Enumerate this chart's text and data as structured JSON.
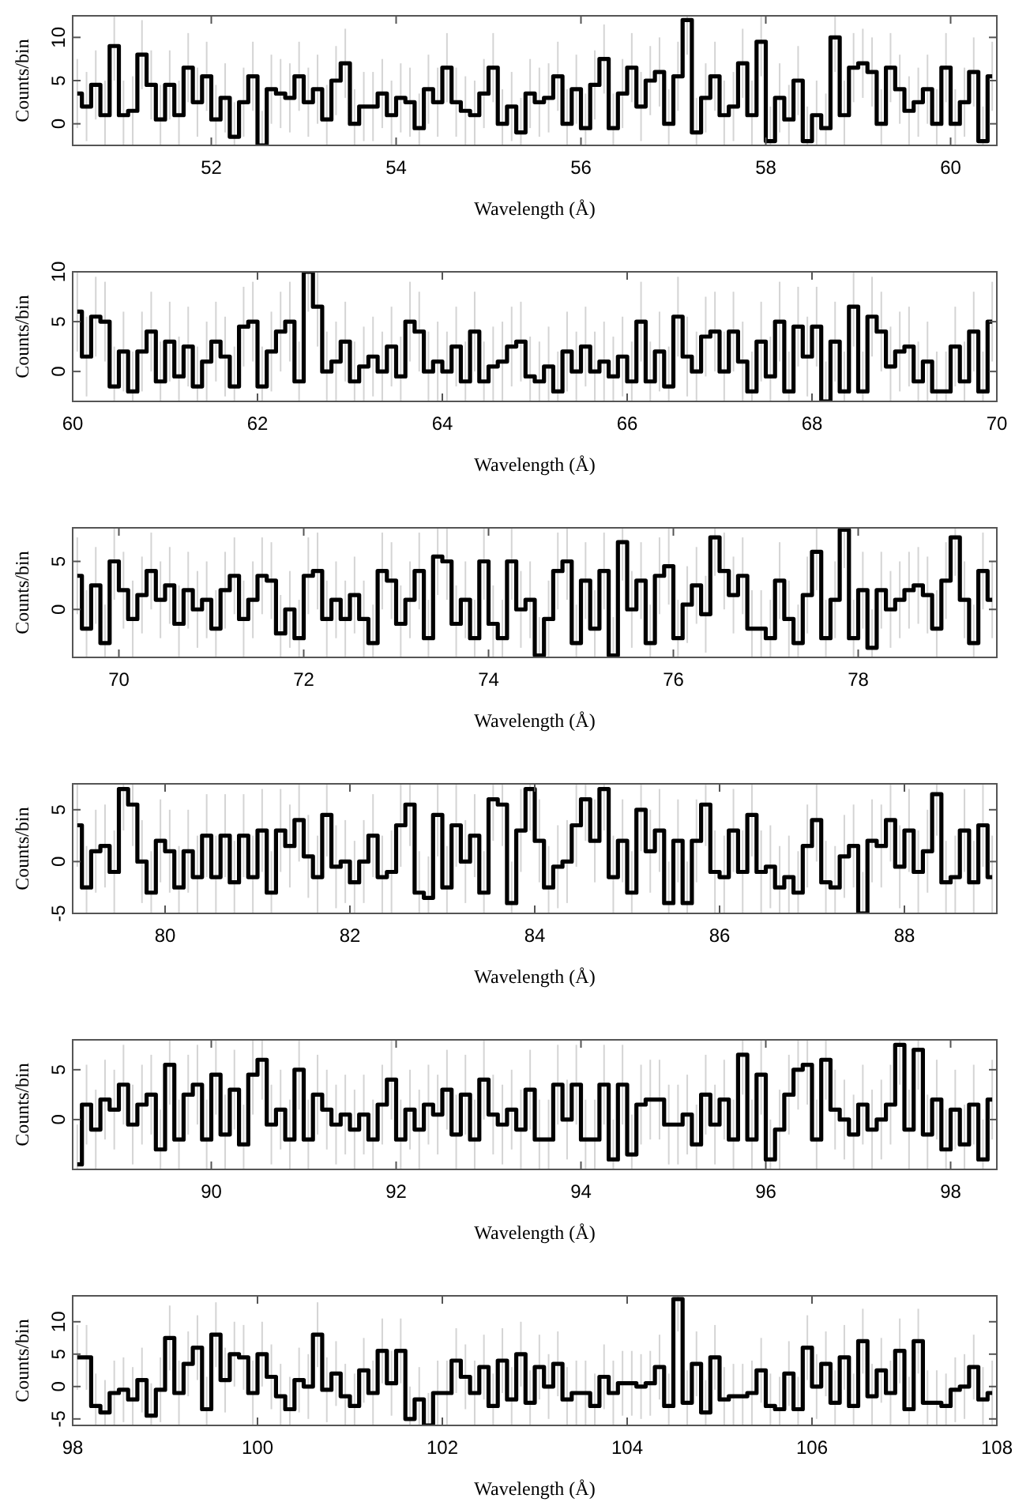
{
  "chart_data": [
    {
      "type": "step",
      "xlabel": "Wavelength (Å)",
      "ylabel": "Counts/bin",
      "xlim": [
        50.5,
        60.5
      ],
      "ylim": [
        -2.5,
        12.5
      ],
      "xticks": [
        52,
        54,
        56,
        58,
        60
      ],
      "yticks": [
        0,
        5,
        10
      ],
      "grid": false,
      "line_style": "solid",
      "marker": "none",
      "x": [
        50.55,
        50.65,
        50.75,
        50.85,
        50.95,
        51.05,
        51.15,
        51.25,
        51.35,
        51.45,
        51.55,
        51.65,
        51.75,
        51.85,
        51.95,
        52.05,
        52.15,
        52.25,
        52.35,
        52.45,
        52.55,
        52.65,
        52.75,
        52.85,
        52.95,
        53.05,
        53.15,
        53.25,
        53.35,
        53.45,
        53.55,
        53.65,
        53.75,
        53.85,
        53.95,
        54.05,
        54.15,
        54.25,
        54.35,
        54.45,
        54.55,
        54.65,
        54.75,
        54.85,
        54.95,
        55.05,
        55.15,
        55.25,
        55.35,
        55.45,
        55.55,
        55.65,
        55.75,
        55.85,
        55.95,
        56.05,
        56.15,
        56.25,
        56.35,
        56.45,
        56.55,
        56.65,
        56.75,
        56.85,
        56.95,
        57.05,
        57.15,
        57.25,
        57.35,
        57.45,
        57.55,
        57.65,
        57.75,
        57.85,
        57.95,
        58.05,
        58.15,
        58.25,
        58.35,
        58.45,
        58.55,
        58.65,
        58.75,
        58.85,
        58.95,
        59.05,
        59.15,
        59.25,
        59.35,
        59.45,
        59.55,
        59.65,
        59.75,
        59.85,
        59.95,
        60.05,
        60.15,
        60.25,
        60.35,
        60.45
      ],
      "values": [
        3.5,
        2,
        4.5,
        1,
        9,
        1,
        1.5,
        8,
        4.5,
        0.5,
        4.5,
        1,
        6.5,
        2.5,
        5.5,
        0.5,
        3,
        -1.5,
        2.5,
        5.5,
        -2.5,
        4,
        3.5,
        3,
        5.5,
        2.5,
        4,
        0.5,
        5,
        7,
        0,
        2,
        2,
        3.5,
        1,
        3,
        2.5,
        -0.5,
        4,
        2.5,
        6.5,
        2.5,
        1.5,
        1,
        3.5,
        6.5,
        0,
        2,
        -1,
        3.5,
        2.5,
        3,
        5.5,
        0,
        4,
        -0.5,
        4.5,
        7.5,
        -0.5,
        3.5,
        6.5,
        2,
        5,
        6,
        0,
        5.5,
        12,
        -1,
        3,
        5.5,
        1,
        2,
        7,
        1,
        9.5,
        -2,
        3,
        0.5,
        5,
        -2,
        1,
        -0.5,
        10,
        1,
        6.5,
        7,
        6,
        0,
        6.5,
        4,
        1.5,
        2.5,
        4,
        0,
        6.5,
        0,
        2.5,
        6,
        -2,
        5.5
      ],
      "errors": [
        4,
        4,
        4,
        4,
        4,
        4,
        4,
        4,
        4,
        4,
        4,
        4,
        4,
        4,
        4,
        4,
        4,
        4,
        4,
        4,
        4,
        4,
        4,
        4,
        4,
        4,
        4,
        4,
        4,
        4,
        4,
        4,
        4,
        4,
        4,
        4,
        4,
        4,
        4,
        4,
        4,
        4,
        4,
        4,
        4,
        4,
        4,
        4,
        4,
        4,
        4,
        4,
        4,
        4,
        4,
        4,
        4,
        4,
        4,
        4,
        4,
        4,
        4,
        4,
        4,
        4,
        4,
        4,
        4,
        4,
        4,
        4,
        4,
        4,
        4,
        4,
        4,
        4,
        4,
        4,
        4,
        4,
        4,
        4,
        4,
        4,
        4,
        4,
        4,
        4,
        4,
        4,
        4,
        4,
        4,
        4,
        4,
        4,
        4,
        4
      ]
    },
    {
      "type": "step",
      "xlabel": "Wavelength (Å)",
      "ylabel": "Counts/bin",
      "xlim": [
        60,
        70
      ],
      "ylim": [
        -3,
        10
      ],
      "xticks": [
        60,
        62,
        64,
        66,
        68,
        70
      ],
      "yticks": [
        0,
        5,
        10
      ],
      "grid": false,
      "line_style": "solid",
      "marker": "none",
      "x": [
        60.05,
        60.15,
        60.25,
        60.35,
        60.45,
        60.55,
        60.65,
        60.75,
        60.85,
        60.95,
        61.05,
        61.15,
        61.25,
        61.35,
        61.45,
        61.55,
        61.65,
        61.75,
        61.85,
        61.95,
        62.05,
        62.15,
        62.25,
        62.35,
        62.45,
        62.55,
        62.65,
        62.75,
        62.85,
        62.95,
        63.05,
        63.15,
        63.25,
        63.35,
        63.45,
        63.55,
        63.65,
        63.75,
        63.85,
        63.95,
        64.05,
        64.15,
        64.25,
        64.35,
        64.45,
        64.55,
        64.65,
        64.75,
        64.85,
        64.95,
        65.05,
        65.15,
        65.25,
        65.35,
        65.45,
        65.55,
        65.65,
        65.75,
        65.85,
        65.95,
        66.05,
        66.15,
        66.25,
        66.35,
        66.45,
        66.55,
        66.65,
        66.75,
        66.85,
        66.95,
        67.05,
        67.15,
        67.25,
        67.35,
        67.45,
        67.55,
        67.65,
        67.75,
        67.85,
        67.95,
        68.05,
        68.15,
        68.25,
        68.35,
        68.45,
        68.55,
        68.65,
        68.75,
        68.85,
        68.95,
        69.05,
        69.15,
        69.25,
        69.35,
        69.45,
        69.55,
        69.65,
        69.75,
        69.85,
        69.95
      ],
      "values": [
        6,
        1.5,
        5.5,
        5,
        -1.5,
        2,
        -2,
        2,
        4,
        -1,
        3,
        -0.5,
        2.5,
        -1.5,
        1,
        3,
        1.5,
        -1.5,
        4.5,
        5,
        -1.5,
        2,
        4,
        5,
        -1,
        10,
        6.5,
        0,
        1,
        3,
        -1,
        0.5,
        1.5,
        0,
        2.5,
        -0.5,
        5,
        4,
        0,
        1,
        0,
        2.5,
        -1,
        4,
        -1,
        0.5,
        1,
        2.5,
        3,
        -0.5,
        -1,
        0.5,
        -2,
        2,
        0,
        2.5,
        0,
        1,
        -0.5,
        1.5,
        -1,
        5,
        -1,
        2,
        -1.5,
        5.5,
        1.5,
        0,
        3.5,
        4,
        0,
        4,
        1,
        -2,
        3,
        -0.5,
        5,
        -2,
        4.5,
        1.5,
        4.5,
        -3,
        3,
        -2,
        6.5,
        -2,
        5.5,
        4,
        0.5,
        2,
        2.5,
        -1,
        1,
        -2,
        -2,
        2.5,
        -1,
        4,
        -2,
        5
      ],
      "errors": [
        4,
        4,
        4,
        4,
        4,
        4,
        4,
        4,
        4,
        4,
        4,
        4,
        4,
        4,
        4,
        4,
        4,
        4,
        4,
        4,
        4,
        4,
        4,
        4,
        4,
        4,
        4,
        4,
        4,
        4,
        4,
        4,
        4,
        4,
        4,
        4,
        4,
        4,
        4,
        4,
        4,
        4,
        4,
        4,
        4,
        4,
        4,
        4,
        4,
        4,
        4,
        4,
        4,
        4,
        4,
        4,
        4,
        4,
        4,
        4,
        4,
        4,
        4,
        4,
        4,
        4,
        4,
        4,
        4,
        4,
        4,
        4,
        4,
        4,
        4,
        4,
        4,
        4,
        4,
        4,
        4,
        4,
        4,
        4,
        4,
        4,
        4,
        4,
        4,
        4,
        4,
        4,
        4,
        4,
        4,
        4,
        4,
        4,
        4,
        4
      ]
    },
    {
      "type": "step",
      "xlabel": "Wavelength (Å)",
      "ylabel": "Counts/bin",
      "xlim": [
        69.5,
        79.5
      ],
      "ylim": [
        -5,
        8.5
      ],
      "xticks": [
        70,
        72,
        74,
        76,
        78
      ],
      "yticks": [
        0,
        5
      ],
      "grid": false,
      "line_style": "solid",
      "marker": "none",
      "x": [
        69.55,
        69.65,
        69.75,
        69.85,
        69.95,
        70.05,
        70.15,
        70.25,
        70.35,
        70.45,
        70.55,
        70.65,
        70.75,
        70.85,
        70.95,
        71.05,
        71.15,
        71.25,
        71.35,
        71.45,
        71.55,
        71.65,
        71.75,
        71.85,
        71.95,
        72.05,
        72.15,
        72.25,
        72.35,
        72.45,
        72.55,
        72.65,
        72.75,
        72.85,
        72.95,
        73.05,
        73.15,
        73.25,
        73.35,
        73.45,
        73.55,
        73.65,
        73.75,
        73.85,
        73.95,
        74.05,
        74.15,
        74.25,
        74.35,
        74.45,
        74.55,
        74.65,
        74.75,
        74.85,
        74.95,
        75.05,
        75.15,
        75.25,
        75.35,
        75.45,
        75.55,
        75.65,
        75.75,
        75.85,
        75.95,
        76.05,
        76.15,
        76.25,
        76.35,
        76.45,
        76.55,
        76.65,
        76.75,
        76.85,
        76.95,
        77.05,
        77.15,
        77.25,
        77.35,
        77.45,
        77.55,
        77.65,
        77.75,
        77.85,
        77.95,
        78.05,
        78.15,
        78.25,
        78.35,
        78.45,
        78.55,
        78.65,
        78.75,
        78.85,
        78.95,
        79.05,
        79.15,
        79.25,
        79.35,
        79.45
      ],
      "values": [
        3.5,
        -2,
        2.5,
        -3.5,
        5,
        2,
        -1,
        1.5,
        4,
        1,
        2.5,
        -1.5,
        2,
        0,
        1,
        -2,
        2,
        3.5,
        -1,
        1,
        3.5,
        3,
        -2.5,
        0,
        -3,
        3.5,
        4,
        -1,
        1,
        -1,
        1.5,
        -1,
        -3.5,
        4,
        3,
        -1.5,
        1,
        4,
        -3,
        5.5,
        5,
        -1.5,
        1,
        -3,
        5,
        -1.5,
        -3,
        5,
        0,
        1,
        -4.8,
        -1,
        4,
        5,
        -3.5,
        3,
        -2,
        4,
        -4.8,
        7,
        0,
        3,
        -3.5,
        3.5,
        4.5,
        -3,
        0.5,
        2.5,
        -0.5,
        7.5,
        4,
        1.5,
        3.5,
        -2,
        -2,
        -3,
        3,
        -1,
        -3.5,
        1.5,
        6,
        -3,
        1,
        8.3,
        -3,
        2,
        -4,
        2,
        0,
        1,
        2,
        2.5,
        1.5,
        -2,
        3,
        7.5,
        1,
        -3.5,
        4,
        1
      ],
      "errors": [
        4,
        4,
        4,
        4,
        4,
        4,
        4,
        4,
        4,
        4,
        4,
        4,
        4,
        4,
        4,
        4,
        4,
        4,
        4,
        4,
        4,
        4,
        4,
        4,
        4,
        4,
        4,
        4,
        4,
        4,
        4,
        4,
        4,
        4,
        4,
        4,
        4,
        4,
        4,
        4,
        4,
        4,
        4,
        4,
        4,
        4,
        4,
        4,
        4,
        4,
        4,
        4,
        4,
        4,
        4,
        4,
        4,
        4,
        4,
        4,
        4,
        4,
        4,
        4,
        4,
        4,
        4,
        4,
        4,
        4,
        4,
        4,
        4,
        4,
        4,
        4,
        4,
        4,
        4,
        4,
        4,
        4,
        4,
        4,
        4,
        4,
        4,
        4,
        4,
        4,
        4,
        4,
        4,
        4,
        4,
        4,
        4,
        4,
        4,
        4
      ]
    },
    {
      "type": "step",
      "xlabel": "Wavelength (Å)",
      "ylabel": "Counts/bin",
      "xlim": [
        79,
        89
      ],
      "ylim": [
        -5,
        7.5
      ],
      "xticks": [
        80,
        82,
        84,
        86,
        88
      ],
      "yticks": [
        -5,
        0,
        5
      ],
      "grid": false,
      "line_style": "solid",
      "marker": "none",
      "x": [
        79.05,
        79.15,
        79.25,
        79.35,
        79.45,
        79.55,
        79.65,
        79.75,
        79.85,
        79.95,
        80.05,
        80.15,
        80.25,
        80.35,
        80.45,
        80.55,
        80.65,
        80.75,
        80.85,
        80.95,
        81.05,
        81.15,
        81.25,
        81.35,
        81.45,
        81.55,
        81.65,
        81.75,
        81.85,
        81.95,
        82.05,
        82.15,
        82.25,
        82.35,
        82.45,
        82.55,
        82.65,
        82.75,
        82.85,
        82.95,
        83.05,
        83.15,
        83.25,
        83.35,
        83.45,
        83.55,
        83.65,
        83.75,
        83.85,
        83.95,
        84.05,
        84.15,
        84.25,
        84.35,
        84.45,
        84.55,
        84.65,
        84.75,
        84.85,
        84.95,
        85.05,
        85.15,
        85.25,
        85.35,
        85.45,
        85.55,
        85.65,
        85.75,
        85.85,
        85.95,
        86.05,
        86.15,
        86.25,
        86.35,
        86.45,
        86.55,
        86.65,
        86.75,
        86.85,
        86.95,
        87.05,
        87.15,
        87.25,
        87.35,
        87.45,
        87.55,
        87.65,
        87.75,
        87.85,
        87.95,
        88.05,
        88.15,
        88.25,
        88.35,
        88.45,
        88.55,
        88.65,
        88.75,
        88.85,
        88.95
      ],
      "values": [
        3.5,
        -2.5,
        1,
        1.5,
        -1,
        7,
        5.5,
        0,
        -3,
        2,
        1,
        -2.5,
        1,
        -1.5,
        2.5,
        -1.5,
        2.5,
        -2,
        2.5,
        -1.5,
        3,
        -3,
        3,
        1.5,
        4,
        0.5,
        -1.5,
        4.5,
        -0.5,
        0,
        -2,
        0,
        2.5,
        -1.5,
        -1,
        3.5,
        5.5,
        -3,
        -3.5,
        4.5,
        -2.5,
        3.5,
        0,
        2.5,
        -3,
        6,
        5.5,
        -4,
        3,
        7,
        2,
        -2.5,
        -0.5,
        0,
        3.5,
        6,
        2,
        7,
        -1.5,
        2,
        -3,
        5,
        1,
        3,
        -4,
        2,
        -4,
        2,
        5.5,
        -1,
        -1.5,
        3,
        -1,
        4.5,
        -1,
        -0.5,
        -2.5,
        -1.5,
        -3,
        1.5,
        4,
        -2,
        -2.5,
        0.5,
        1.5,
        -5,
        2,
        1.5,
        4,
        -0.5,
        3,
        -1,
        1,
        6.5,
        -2,
        -1.5,
        3,
        -2,
        3.5,
        -1.5
      ],
      "errors": [
        4,
        4,
        4,
        4,
        4,
        4,
        4,
        4,
        4,
        4,
        4,
        4,
        4,
        4,
        4,
        4,
        4,
        4,
        4,
        4,
        4,
        4,
        4,
        4,
        4,
        4,
        4,
        4,
        4,
        4,
        4,
        4,
        4,
        4,
        4,
        4,
        4,
        4,
        4,
        4,
        4,
        4,
        4,
        4,
        4,
        4,
        4,
        4,
        4,
        4,
        4,
        4,
        4,
        4,
        4,
        4,
        4,
        4,
        4,
        4,
        4,
        4,
        4,
        4,
        4,
        4,
        4,
        4,
        4,
        4,
        4,
        4,
        4,
        4,
        4,
        4,
        4,
        4,
        4,
        4,
        4,
        4,
        4,
        4,
        4,
        4,
        4,
        4,
        4,
        4,
        4,
        4,
        4,
        4,
        4,
        4,
        4,
        4,
        4,
        4
      ]
    },
    {
      "type": "step",
      "xlabel": "Wavelength (Å)",
      "ylabel": "Counts/bin",
      "xlim": [
        88.5,
        98.5
      ],
      "ylim": [
        -5,
        8
      ],
      "xticks": [
        90,
        92,
        94,
        96,
        98
      ],
      "yticks": [
        0,
        5
      ],
      "grid": false,
      "line_style": "solid",
      "marker": "none",
      "x": [
        88.55,
        88.65,
        88.75,
        88.85,
        88.95,
        89.05,
        89.15,
        89.25,
        89.35,
        89.45,
        89.55,
        89.65,
        89.75,
        89.85,
        89.95,
        90.05,
        90.15,
        90.25,
        90.35,
        90.45,
        90.55,
        90.65,
        90.75,
        90.85,
        90.95,
        91.05,
        91.15,
        91.25,
        91.35,
        91.45,
        91.55,
        91.65,
        91.75,
        91.85,
        91.95,
        92.05,
        92.15,
        92.25,
        92.35,
        92.45,
        92.55,
        92.65,
        92.75,
        92.85,
        92.95,
        93.05,
        93.15,
        93.25,
        93.35,
        93.45,
        93.55,
        93.65,
        93.75,
        93.85,
        93.95,
        94.05,
        94.15,
        94.25,
        94.35,
        94.45,
        94.55,
        94.65,
        94.75,
        94.85,
        94.95,
        95.05,
        95.15,
        95.25,
        95.35,
        95.45,
        95.55,
        95.65,
        95.75,
        95.85,
        95.95,
        96.05,
        96.15,
        96.25,
        96.35,
        96.45,
        96.55,
        96.65,
        96.75,
        96.85,
        96.95,
        97.05,
        97.15,
        97.25,
        97.35,
        97.45,
        97.55,
        97.65,
        97.75,
        97.85,
        97.95,
        98.05,
        98.15,
        98.25,
        98.35,
        98.45
      ],
      "values": [
        -4.5,
        1.5,
        -1,
        2,
        1,
        3.5,
        -0.5,
        1.5,
        2.5,
        -3,
        5.5,
        -2,
        2.5,
        3.5,
        -2,
        4.5,
        -1.5,
        3,
        -2.5,
        4.5,
        6,
        -0.5,
        1,
        -2,
        5,
        -2,
        2.5,
        1,
        -0.5,
        0.5,
        -1,
        0.5,
        -2,
        1.5,
        4,
        -2,
        1,
        -1,
        1.5,
        0.5,
        3,
        -1.5,
        2.5,
        -2,
        4,
        0.5,
        -0.5,
        1,
        -1,
        3,
        -2,
        -2,
        3.5,
        0,
        3.5,
        -2,
        -2,
        3.5,
        -4,
        3.5,
        -3.5,
        1.5,
        2,
        2,
        -0.5,
        -0.5,
        0.5,
        -2.5,
        2.5,
        -0.5,
        2,
        -2,
        6.5,
        -2,
        4.5,
        -4,
        -1,
        2.5,
        5,
        5.5,
        -2,
        6,
        1,
        0,
        -1.5,
        1.5,
        -1,
        0,
        1.5,
        7.5,
        -1,
        7,
        -1.5,
        2,
        -3,
        1,
        -2.5,
        1.5,
        -4,
        2
      ],
      "errors": [
        4,
        4,
        4,
        4,
        4,
        4,
        4,
        4,
        4,
        4,
        4,
        4,
        4,
        4,
        4,
        4,
        4,
        4,
        4,
        4,
        4,
        4,
        4,
        4,
        4,
        4,
        4,
        4,
        4,
        4,
        4,
        4,
        4,
        4,
        4,
        4,
        4,
        4,
        4,
        4,
        4,
        4,
        4,
        4,
        4,
        4,
        4,
        4,
        4,
        4,
        4,
        4,
        4,
        4,
        4,
        4,
        4,
        4,
        4,
        4,
        4,
        4,
        4,
        4,
        4,
        4,
        4,
        4,
        4,
        4,
        4,
        4,
        4,
        4,
        4,
        4,
        4,
        4,
        4,
        4,
        4,
        4,
        4,
        4,
        4,
        4,
        4,
        4,
        4,
        4,
        4,
        4,
        4,
        4,
        4,
        4,
        4,
        4,
        4,
        4
      ]
    },
    {
      "type": "step",
      "xlabel": "Wavelength (Å)",
      "ylabel": "Counts/bin",
      "xlim": [
        98,
        108
      ],
      "ylim": [
        -6,
        14
      ],
      "xticks": [
        98,
        100,
        102,
        104,
        106,
        108
      ],
      "yticks": [
        -5,
        0,
        5,
        10
      ],
      "grid": false,
      "line_style": "solid",
      "marker": "none",
      "x": [
        98.05,
        98.15,
        98.25,
        98.35,
        98.45,
        98.55,
        98.65,
        98.75,
        98.85,
        98.95,
        99.05,
        99.15,
        99.25,
        99.35,
        99.45,
        99.55,
        99.65,
        99.75,
        99.85,
        99.95,
        100.05,
        100.15,
        100.25,
        100.35,
        100.45,
        100.55,
        100.65,
        100.75,
        100.85,
        100.95,
        101.05,
        101.15,
        101.25,
        101.35,
        101.45,
        101.55,
        101.65,
        101.75,
        101.85,
        101.95,
        102.05,
        102.15,
        102.25,
        102.35,
        102.45,
        102.55,
        102.65,
        102.75,
        102.85,
        102.95,
        103.05,
        103.15,
        103.25,
        103.35,
        103.45,
        103.55,
        103.65,
        103.75,
        103.85,
        103.95,
        104.05,
        104.15,
        104.25,
        104.35,
        104.45,
        104.55,
        104.65,
        104.75,
        104.85,
        104.95,
        105.05,
        105.15,
        105.25,
        105.35,
        105.45,
        105.55,
        105.65,
        105.75,
        105.85,
        105.95,
        106.05,
        106.15,
        106.25,
        106.35,
        106.45,
        106.55,
        106.65,
        106.75,
        106.85,
        106.95,
        107.05,
        107.15,
        107.25,
        107.35,
        107.45,
        107.55,
        107.65,
        107.75,
        107.85,
        107.95
      ],
      "values": [
        4.5,
        4.5,
        -3,
        -4,
        -1,
        -0.5,
        -2,
        1,
        -4.5,
        -0.5,
        7.5,
        -1,
        3.5,
        6,
        -3.5,
        8,
        1,
        5,
        4.5,
        -1,
        5,
        1.5,
        -1.5,
        -3.5,
        1,
        0,
        8,
        -0.5,
        2,
        -1.5,
        -3,
        2.5,
        -1,
        5.5,
        0.5,
        5.5,
        -5,
        -2,
        -6,
        -1,
        -1,
        4,
        1.5,
        -1,
        3,
        -3,
        4,
        -2,
        5,
        -2.5,
        3,
        0,
        3.5,
        -2,
        -1,
        -1,
        -3,
        1.5,
        -1,
        0.5,
        0.5,
        0,
        0.5,
        3,
        -3,
        13.5,
        -2.5,
        3.5,
        -4,
        4.5,
        -2,
        -1.5,
        -1.5,
        -1,
        2.5,
        -3,
        -3.5,
        2,
        -3.5,
        6,
        0,
        3.5,
        -2.5,
        4.5,
        -3,
        7,
        -1.5,
        2.5,
        -1,
        5.5,
        -3.5,
        7,
        -2.5,
        -2.5,
        -3,
        -0.5,
        0,
        3,
        -2,
        -1
      ],
      "errors": [
        5,
        5,
        5,
        5,
        5,
        5,
        5,
        5,
        5,
        5,
        5,
        5,
        5,
        5,
        5,
        5,
        5,
        5,
        5,
        5,
        5,
        5,
        5,
        5,
        5,
        5,
        5,
        5,
        5,
        5,
        5,
        5,
        5,
        5,
        5,
        5,
        5,
        5,
        5,
        5,
        5,
        5,
        5,
        5,
        5,
        5,
        5,
        5,
        5,
        5,
        5,
        5,
        5,
        5,
        5,
        5,
        5,
        5,
        5,
        5,
        5,
        5,
        5,
        5,
        5,
        5,
        5,
        5,
        5,
        5,
        5,
        5,
        5,
        5,
        5,
        5,
        5,
        5,
        5,
        5,
        5,
        5,
        5,
        5,
        5,
        5,
        5,
        5,
        5,
        5,
        5,
        5,
        5,
        5,
        5,
        5,
        5,
        5,
        5,
        5
      ]
    }
  ]
}
